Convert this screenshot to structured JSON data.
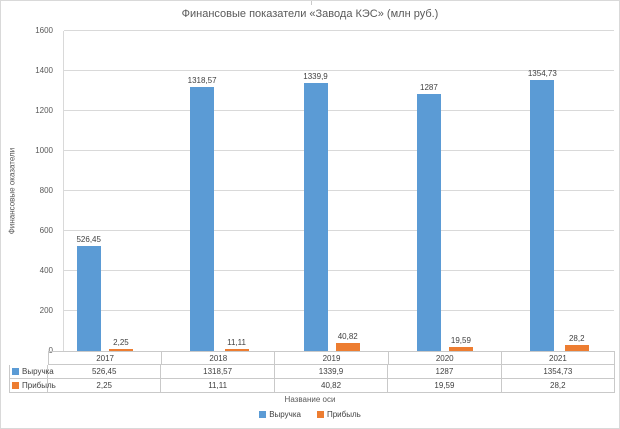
{
  "chart_data": {
    "type": "bar",
    "title": "Финансовые показатели «Завода КЭС» (млн руб.)",
    "ylabel": "Финансовые оказатели",
    "xlabel": "Название оси",
    "categories": [
      "2017",
      "2018",
      "2019",
      "2020",
      "2021"
    ],
    "series": [
      {
        "name": "Выручка",
        "color": "#5B9BD5",
        "values": [
          526.45,
          1318.57,
          1339.9,
          1287,
          1354.73
        ],
        "labels": [
          "526,45",
          "1318,57",
          "1339,9",
          "1287",
          "1354,73"
        ]
      },
      {
        "name": "Прибыль",
        "color": "#ED7D31",
        "values": [
          2.25,
          11.11,
          40.82,
          19.59,
          28.2
        ],
        "labels": [
          "2,25",
          "11,11",
          "40,82",
          "19,59",
          "28,2"
        ]
      }
    ],
    "ylim": [
      0,
      1600
    ],
    "yticks": [
      0,
      200,
      400,
      600,
      800,
      1000,
      1200,
      1400,
      1600
    ],
    "grid": true,
    "legend_position": "bottom",
    "data_table": true,
    "colors": {
      "grid": "#D9D9D9",
      "axis_text": "#595959",
      "label_text": "#404040",
      "background": "#FFFFFF"
    }
  }
}
